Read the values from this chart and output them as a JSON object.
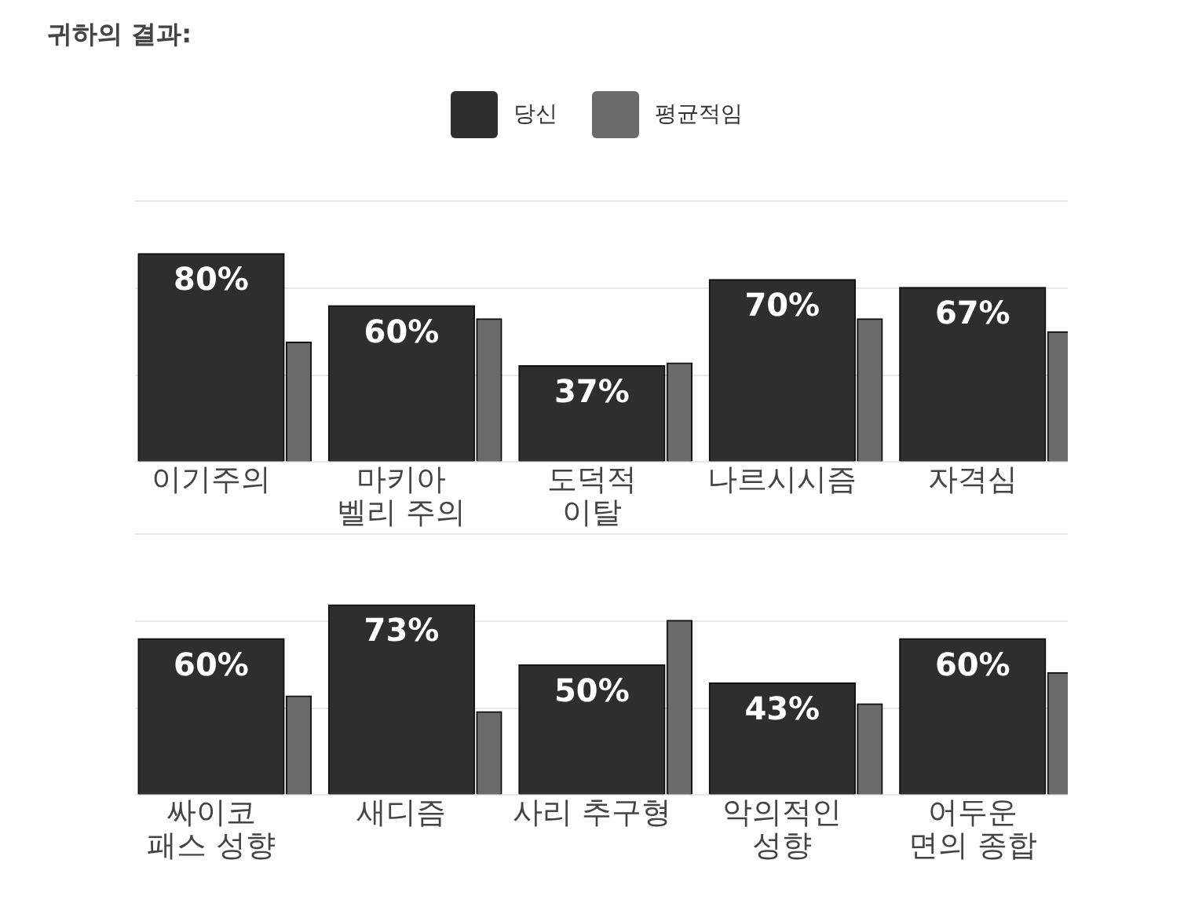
{
  "chart_data": [
    {
      "type": "bar",
      "title": "귀하의 결과:",
      "categories": [
        "이기주의",
        "마키아\n벨리 주의",
        "도덕적\n이탈",
        "나르시시즘",
        "자격심"
      ],
      "ylim": [
        0,
        100
      ],
      "yticks": [
        {
          "value": 0,
          "label": null
        },
        {
          "value": 33.3,
          "label": null
        },
        {
          "value": 66.7,
          "label": null
        },
        {
          "value": 100,
          "label": null
        }
      ],
      "grid": "y",
      "legend": "top",
      "series": [
        {
          "name": "당신",
          "color": "#2e2e2e",
          "values": [
            80,
            60,
            37,
            70,
            67
          ],
          "value_labels": [
            "80%",
            "60%",
            "37%",
            "70%",
            "67%"
          ]
        },
        {
          "name": "평균적임",
          "color": "#6a6a6a",
          "values": [
            46,
            55,
            38,
            55,
            50
          ]
        }
      ]
    },
    {
      "type": "bar",
      "categories": [
        "싸이코\n패스 성향",
        "새디즘",
        "사리 추구형",
        "악의적인\n성향",
        "어두운\n면의 종합"
      ],
      "ylim": [
        0,
        100
      ],
      "yticks": [
        {
          "value": 0,
          "label": null
        },
        {
          "value": 33.3,
          "label": null
        },
        {
          "value": 66.7,
          "label": null
        },
        {
          "value": 100,
          "label": null
        }
      ],
      "grid": "y",
      "series": [
        {
          "color": "#2e2e2e",
          "values": [
            60,
            73,
            50,
            43,
            60
          ],
          "value_labels": [
            "60%",
            "73%",
            "50%",
            "43%",
            "60%"
          ]
        },
        {
          "color": "#6a6a6a",
          "values": [
            38,
            32,
            67,
            35,
            47
          ]
        }
      ]
    }
  ]
}
